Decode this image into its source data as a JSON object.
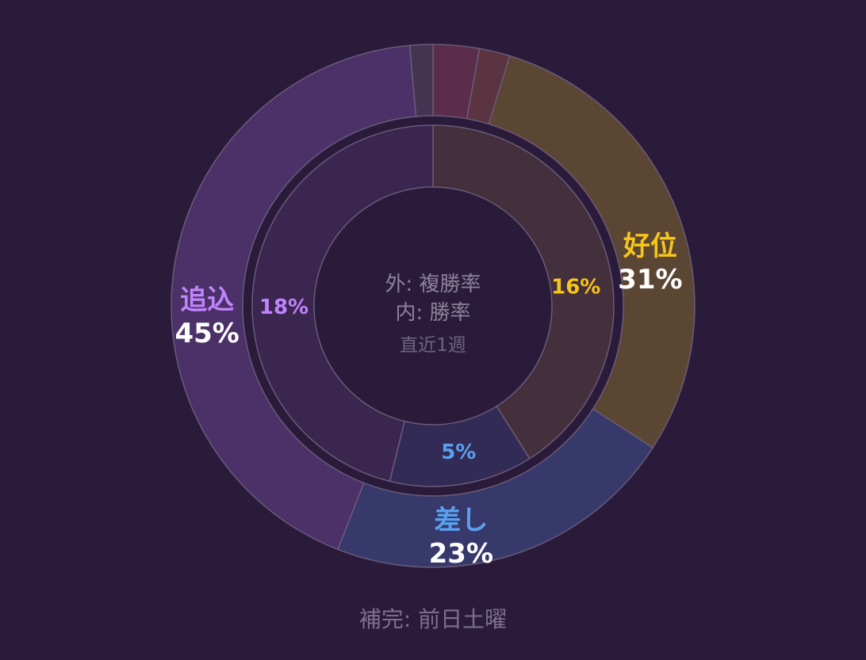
{
  "chart_data": {
    "type": "donut",
    "center": {
      "line1": "外: 複勝率",
      "line2": "内: 勝率",
      "line3": "直近1週"
    },
    "outer": {
      "segments": [
        {
          "name": "好位",
          "value": 31,
          "color": "#5b4634",
          "label_color": "#f5c518"
        },
        {
          "name": "差し",
          "value": 23,
          "color": "#37396a",
          "label_color": "#5aa0f0"
        },
        {
          "name": "追込",
          "value": 45,
          "color": "#4b3168",
          "label_color": "#c084fc"
        }
      ],
      "extra_segments": [
        {
          "value": 3,
          "color": "#5a2d4a"
        },
        {
          "value": 2,
          "color": "#5a3440"
        },
        {
          "value": 1.5,
          "color": "#433552"
        }
      ]
    },
    "inner": {
      "segments": [
        {
          "name": "好位",
          "value": 16,
          "color": "#442f3c",
          "label_color": "#f5c518"
        },
        {
          "name": "差し",
          "value": 5,
          "color": "#322b55",
          "label_color": "#5aa0f0"
        },
        {
          "name": "追込",
          "value": 18,
          "color": "#3b2650",
          "label_color": "#c084fc"
        }
      ]
    },
    "footnote": "補完: 前日土曜"
  }
}
